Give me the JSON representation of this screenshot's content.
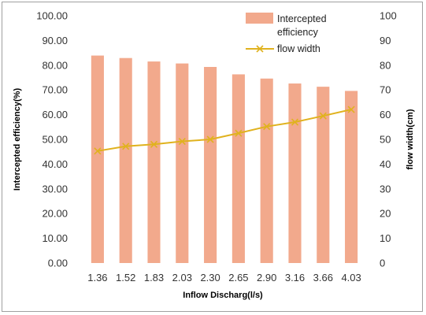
{
  "chart_data": {
    "type": "bar+line",
    "categories": [
      "1.36",
      "1.52",
      "1.83",
      "2.03",
      "2.30",
      "2.65",
      "2.90",
      "3.16",
      "3.66",
      "4.03"
    ],
    "series": [
      {
        "name": "Intercepted efficiency",
        "type": "bar",
        "axis": "left",
        "color": "#f2a98c",
        "values": [
          83.9,
          82.9,
          81.5,
          80.7,
          79.3,
          76.3,
          74.6,
          72.6,
          71.3,
          69.6
        ]
      },
      {
        "name": "flow width",
        "type": "line",
        "axis": "right",
        "color": "#e0b21e",
        "marker": "x",
        "values": [
          45.3,
          47.2,
          48.0,
          49.2,
          50.0,
          52.5,
          55.2,
          57.0,
          59.5,
          62.1
        ]
      }
    ],
    "xlabel": "Inflow Discharg(l/s)",
    "ylabel_left": "Intercepted efficiency(%)",
    "ylabel_right": "flow width(cm)",
    "ylim_left": [
      0,
      100
    ],
    "ylim_right": [
      0,
      100
    ],
    "yticks_left": [
      "0.00",
      "10.00",
      "20.00",
      "30.00",
      "40.00",
      "50.00",
      "60.00",
      "70.00",
      "80.00",
      "90.00",
      "100.00"
    ],
    "yticks_right": [
      "0",
      "10",
      "20",
      "30",
      "40",
      "50",
      "60",
      "70",
      "80",
      "90",
      "100"
    ],
    "legend": {
      "position": "top-right",
      "entries": [
        {
          "lines": [
            "Intercepted",
            "efficiency"
          ]
        },
        {
          "lines": [
            "flow width"
          ]
        }
      ]
    },
    "grid": false
  }
}
